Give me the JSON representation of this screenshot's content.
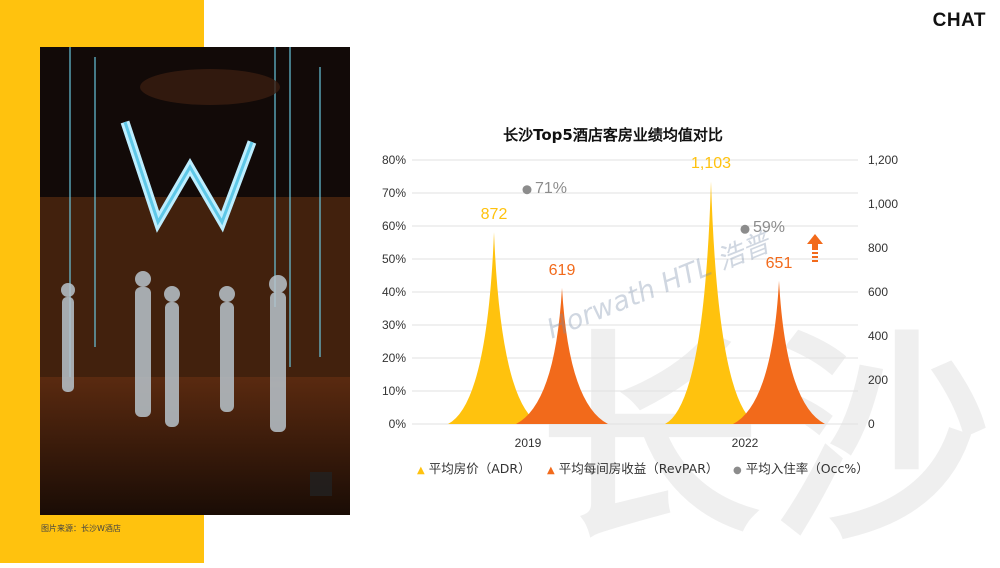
{
  "header": {
    "brand": "CHAT"
  },
  "background_glyph": {
    "char1": "长",
    "char2": "沙"
  },
  "photo": {
    "caption": "图片来源：长沙W酒店"
  },
  "watermark": "Horwath HTL 浩普",
  "chart_data": {
    "type": "bar",
    "title": "长沙Top5酒店客房业绩均值对比",
    "categories": [
      "2019",
      "2022"
    ],
    "series": [
      {
        "name": "平均房价（ADR）",
        "axis": "right",
        "color": "#FFC20E",
        "values": [
          872,
          1103
        ],
        "labels": [
          "872",
          "1,103"
        ]
      },
      {
        "name": "平均每间房收益（RevPAR）",
        "axis": "right",
        "color": "#F26A1B",
        "values": [
          619,
          651
        ],
        "labels": [
          "619",
          "651"
        ]
      },
      {
        "name": "平均入住率（Occ%）",
        "axis": "left",
        "type": "scatter",
        "color": "#8c8c8c",
        "values": [
          71,
          59
        ],
        "labels": [
          "71%",
          "59%"
        ]
      }
    ],
    "y_left": {
      "min": 0,
      "max": 80,
      "ticks": [
        "0%",
        "10%",
        "20%",
        "30%",
        "40%",
        "50%",
        "60%",
        "70%",
        "80%"
      ]
    },
    "y_right": {
      "min": 0,
      "max": 1200,
      "ticks": [
        "0",
        "200",
        "400",
        "600",
        "800",
        "1,000",
        "1,200"
      ]
    },
    "grid": true,
    "legend_position": "bottom",
    "annotation": {
      "icon": "up-arrow-icon",
      "color": "#F26A1B"
    }
  }
}
